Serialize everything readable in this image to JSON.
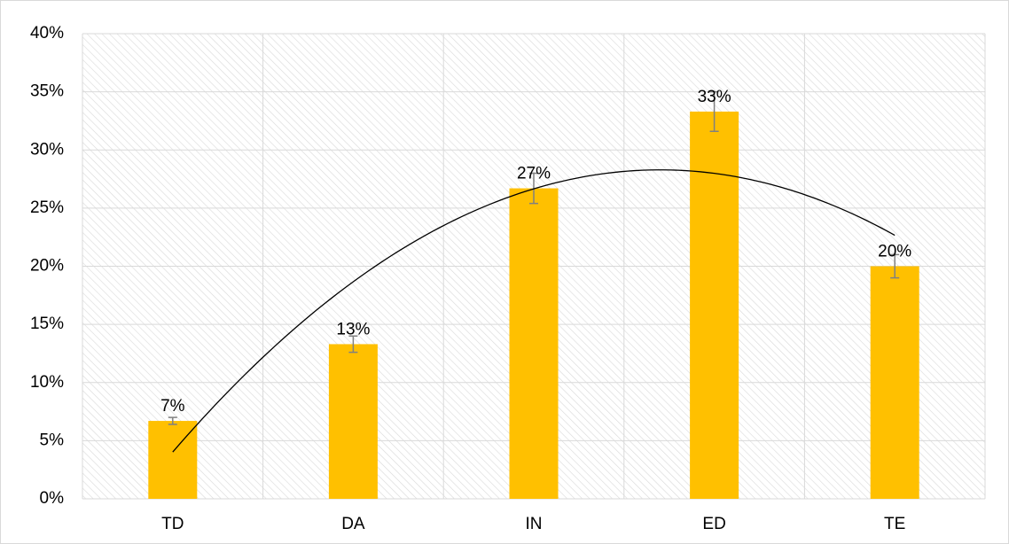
{
  "chart_data": {
    "type": "bar",
    "categories": [
      "TD",
      "DA",
      "IN",
      "ED",
      "TE"
    ],
    "series": [
      {
        "color": "#ffc000",
        "values": [
          6.7,
          13.3,
          26.7,
          33.3,
          20
        ],
        "value_labels": [
          "7%",
          "13%",
          "27%",
          "33%",
          "20%"
        ],
        "errors": [
          0.3,
          0.7,
          1.3,
          1.7,
          1.0
        ],
        "error_color": "#808080"
      }
    ],
    "ylim": [
      0,
      40
    ],
    "yticks": [
      {
        "value": 0,
        "label": "0%"
      },
      {
        "value": 5,
        "label": "5%"
      },
      {
        "value": 10,
        "label": "10%"
      },
      {
        "value": 15,
        "label": "15%"
      },
      {
        "value": 20,
        "label": "20%"
      },
      {
        "value": 25,
        "label": "25%"
      },
      {
        "value": 30,
        "label": "30%"
      },
      {
        "value": 35,
        "label": "35%"
      },
      {
        "value": 40,
        "label": "40%"
      }
    ],
    "grid": true,
    "trendline": {
      "type": "polynomial",
      "order": 2,
      "color": "#000000"
    }
  }
}
